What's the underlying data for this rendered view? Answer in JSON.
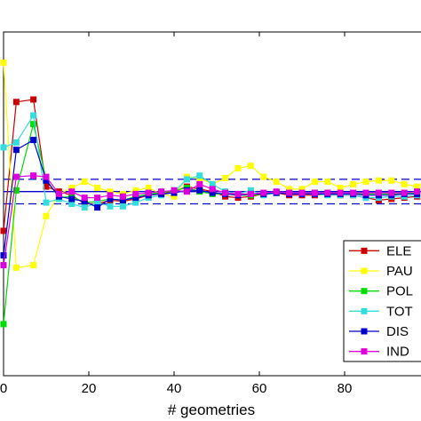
{
  "chart_data": {
    "type": "line",
    "title": "",
    "xlabel": "# geometries",
    "ylabel": "",
    "xlim": [
      0,
      100
    ],
    "ylim": [
      -1.5,
      1.3
    ],
    "x_ticks": [
      0,
      20,
      40,
      60,
      80
    ],
    "x_tick_labels": [
      "0",
      "20",
      "40",
      "60",
      "80"
    ],
    "y_ticks": [],
    "grid": false,
    "legend_position": "bottom-right",
    "x": [
      0,
      3,
      7,
      10,
      13,
      16,
      19,
      22,
      25,
      28,
      31,
      34,
      37,
      40,
      43,
      46,
      49,
      52,
      55,
      58,
      61,
      64,
      67,
      70,
      73,
      76,
      79,
      82,
      85,
      88,
      91,
      94,
      97
    ],
    "series": [
      {
        "name": "ELE",
        "color": "#cc0000",
        "values": [
          -0.32,
          0.73,
          0.75,
          0.04,
          0.0,
          -0.03,
          -0.1,
          -0.1,
          -0.07,
          -0.08,
          -0.06,
          -0.03,
          -0.02,
          0.0,
          0.04,
          0.02,
          0.0,
          -0.04,
          -0.05,
          -0.04,
          -0.02,
          -0.01,
          -0.03,
          -0.03,
          -0.03,
          -0.02,
          -0.03,
          -0.03,
          -0.05,
          -0.07,
          -0.06,
          -0.05,
          -0.04
        ]
      },
      {
        "name": "PAU",
        "color": "#ffff00",
        "values": [
          1.05,
          -0.62,
          -0.6,
          -0.2,
          -0.02,
          0.03,
          0.08,
          0.03,
          0.0,
          -0.02,
          0.01,
          0.03,
          -0.02,
          -0.04,
          0.12,
          0.11,
          0.06,
          0.11,
          0.19,
          0.21,
          0.12,
          0.08,
          0.02,
          0.02,
          0.08,
          0.08,
          0.03,
          0.06,
          0.08,
          0.09,
          0.09,
          0.06,
          0.04
        ]
      },
      {
        "name": "POL",
        "color": "#00dd00",
        "values": [
          -1.08,
          0.01,
          0.55,
          0.1,
          -0.05,
          -0.04,
          -0.09,
          -0.08,
          -0.06,
          -0.07,
          -0.04,
          -0.02,
          -0.01,
          0.01,
          0.03,
          0.0,
          -0.02,
          -0.02,
          -0.03,
          -0.03,
          -0.02,
          -0.01,
          -0.01,
          -0.02,
          -0.01,
          -0.01,
          -0.02,
          -0.02,
          -0.02,
          -0.02,
          -0.02,
          -0.02,
          -0.01
        ]
      },
      {
        "name": "TOT",
        "color": "#33dddd",
        "values": [
          0.36,
          0.4,
          0.62,
          -0.09,
          -0.06,
          -0.1,
          -0.13,
          -0.09,
          -0.12,
          -0.12,
          -0.09,
          -0.05,
          -0.03,
          0.0,
          0.1,
          0.13,
          0.06,
          0.0,
          -0.02,
          0.01,
          -0.03,
          -0.01,
          -0.01,
          -0.02,
          -0.02,
          -0.03,
          -0.03,
          -0.03,
          -0.05,
          -0.05,
          -0.04,
          -0.04,
          -0.03
        ]
      },
      {
        "name": "DIS",
        "color": "#0000cc",
        "values": [
          -0.52,
          0.34,
          0.42,
          0.09,
          -0.04,
          -0.06,
          -0.08,
          -0.13,
          -0.06,
          -0.07,
          -0.05,
          -0.03,
          -0.02,
          -0.01,
          0.01,
          0.01,
          -0.01,
          -0.02,
          -0.03,
          -0.02,
          -0.02,
          -0.01,
          -0.02,
          -0.02,
          -0.02,
          -0.02,
          -0.02,
          -0.02,
          -0.03,
          -0.03,
          -0.03,
          -0.02,
          -0.02
        ]
      },
      {
        "name": "IND",
        "color": "#dd00dd",
        "values": [
          -0.6,
          0.12,
          0.13,
          0.12,
          -0.02,
          0.0,
          -0.05,
          -0.05,
          -0.03,
          -0.04,
          -0.02,
          -0.01,
          0.0,
          0.01,
          0.0,
          0.06,
          0.02,
          -0.01,
          -0.02,
          -0.02,
          -0.01,
          0.0,
          -0.01,
          -0.01,
          -0.01,
          -0.01,
          -0.01,
          -0.01,
          -0.01,
          -0.01,
          -0.01,
          -0.01,
          0.0
        ]
      }
    ],
    "reference_lines": [
      {
        "y": 0.1,
        "style": "dashed",
        "color": "#0000cc"
      },
      {
        "y": 0.0,
        "style": "solid",
        "color": "#0000cc"
      },
      {
        "y": -0.1,
        "style": "dashed",
        "color": "#0000cc"
      }
    ]
  }
}
